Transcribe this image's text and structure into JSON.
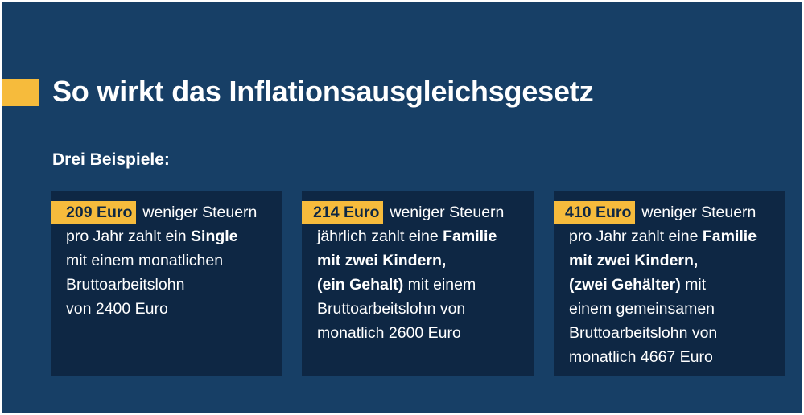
{
  "title": "So wirkt das Inflationsausgleichsgesetz",
  "subtitle": "Drei Beispiele:",
  "colors": {
    "background": "#173f66",
    "card": "#0e2744",
    "accent": "#f6bb3c",
    "text": "#ffffff"
  },
  "cards": [
    {
      "amount": "209 Euro",
      "lead": "weniger Steuern",
      "l2": "pro Jahr zahlt ein ",
      "l2b": "Single",
      "l3": "mit einem monatlichen",
      "l4": "Bruttoarbeitslohn",
      "l5": "von 2400 Euro"
    },
    {
      "amount": "214 Euro",
      "lead": "weniger Steuern",
      "l2": "jährlich zahlt eine ",
      "l2b": "Familie",
      "l3b": "mit zwei Kindern,",
      "l4b": "(ein Gehalt)",
      "l4": " mit einem",
      "l5": "Bruttoarbeitslohn von",
      "l6": "monatlich 2600 Euro"
    },
    {
      "amount": "410 Euro",
      "lead": "weniger Steuern",
      "l2": "pro Jahr zahlt eine ",
      "l2b": "Familie",
      "l3b": "mit zwei Kindern,",
      "l4b": "(zwei Gehälter)",
      "l4": " mit",
      "l5": "einem gemeinsamen",
      "l6": "Bruttoarbeitslohn von",
      "l7": "monatlich 4667 Euro"
    }
  ]
}
